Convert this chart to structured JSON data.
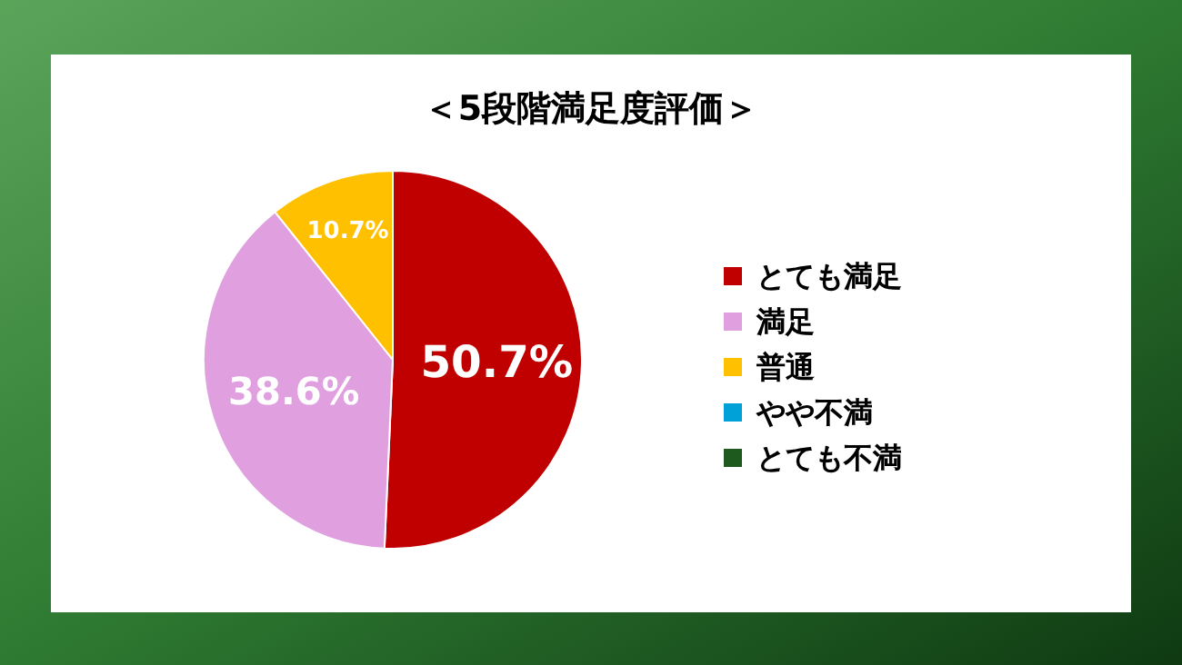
{
  "chart_data": {
    "type": "pie",
    "title": "＜5段階満足度評価＞",
    "categories": [
      "とても満足",
      "満足",
      "普通",
      "やや不満",
      "とても不満"
    ],
    "values": [
      50.7,
      38.6,
      10.7,
      0,
      0
    ],
    "colors": [
      "#c00000",
      "#e0a0e0",
      "#ffc000",
      "#00a0d8",
      "#1e5a1e"
    ],
    "value_labels": [
      "50.7%",
      "38.6%",
      "10.7%",
      null,
      null
    ],
    "legend": "right"
  }
}
